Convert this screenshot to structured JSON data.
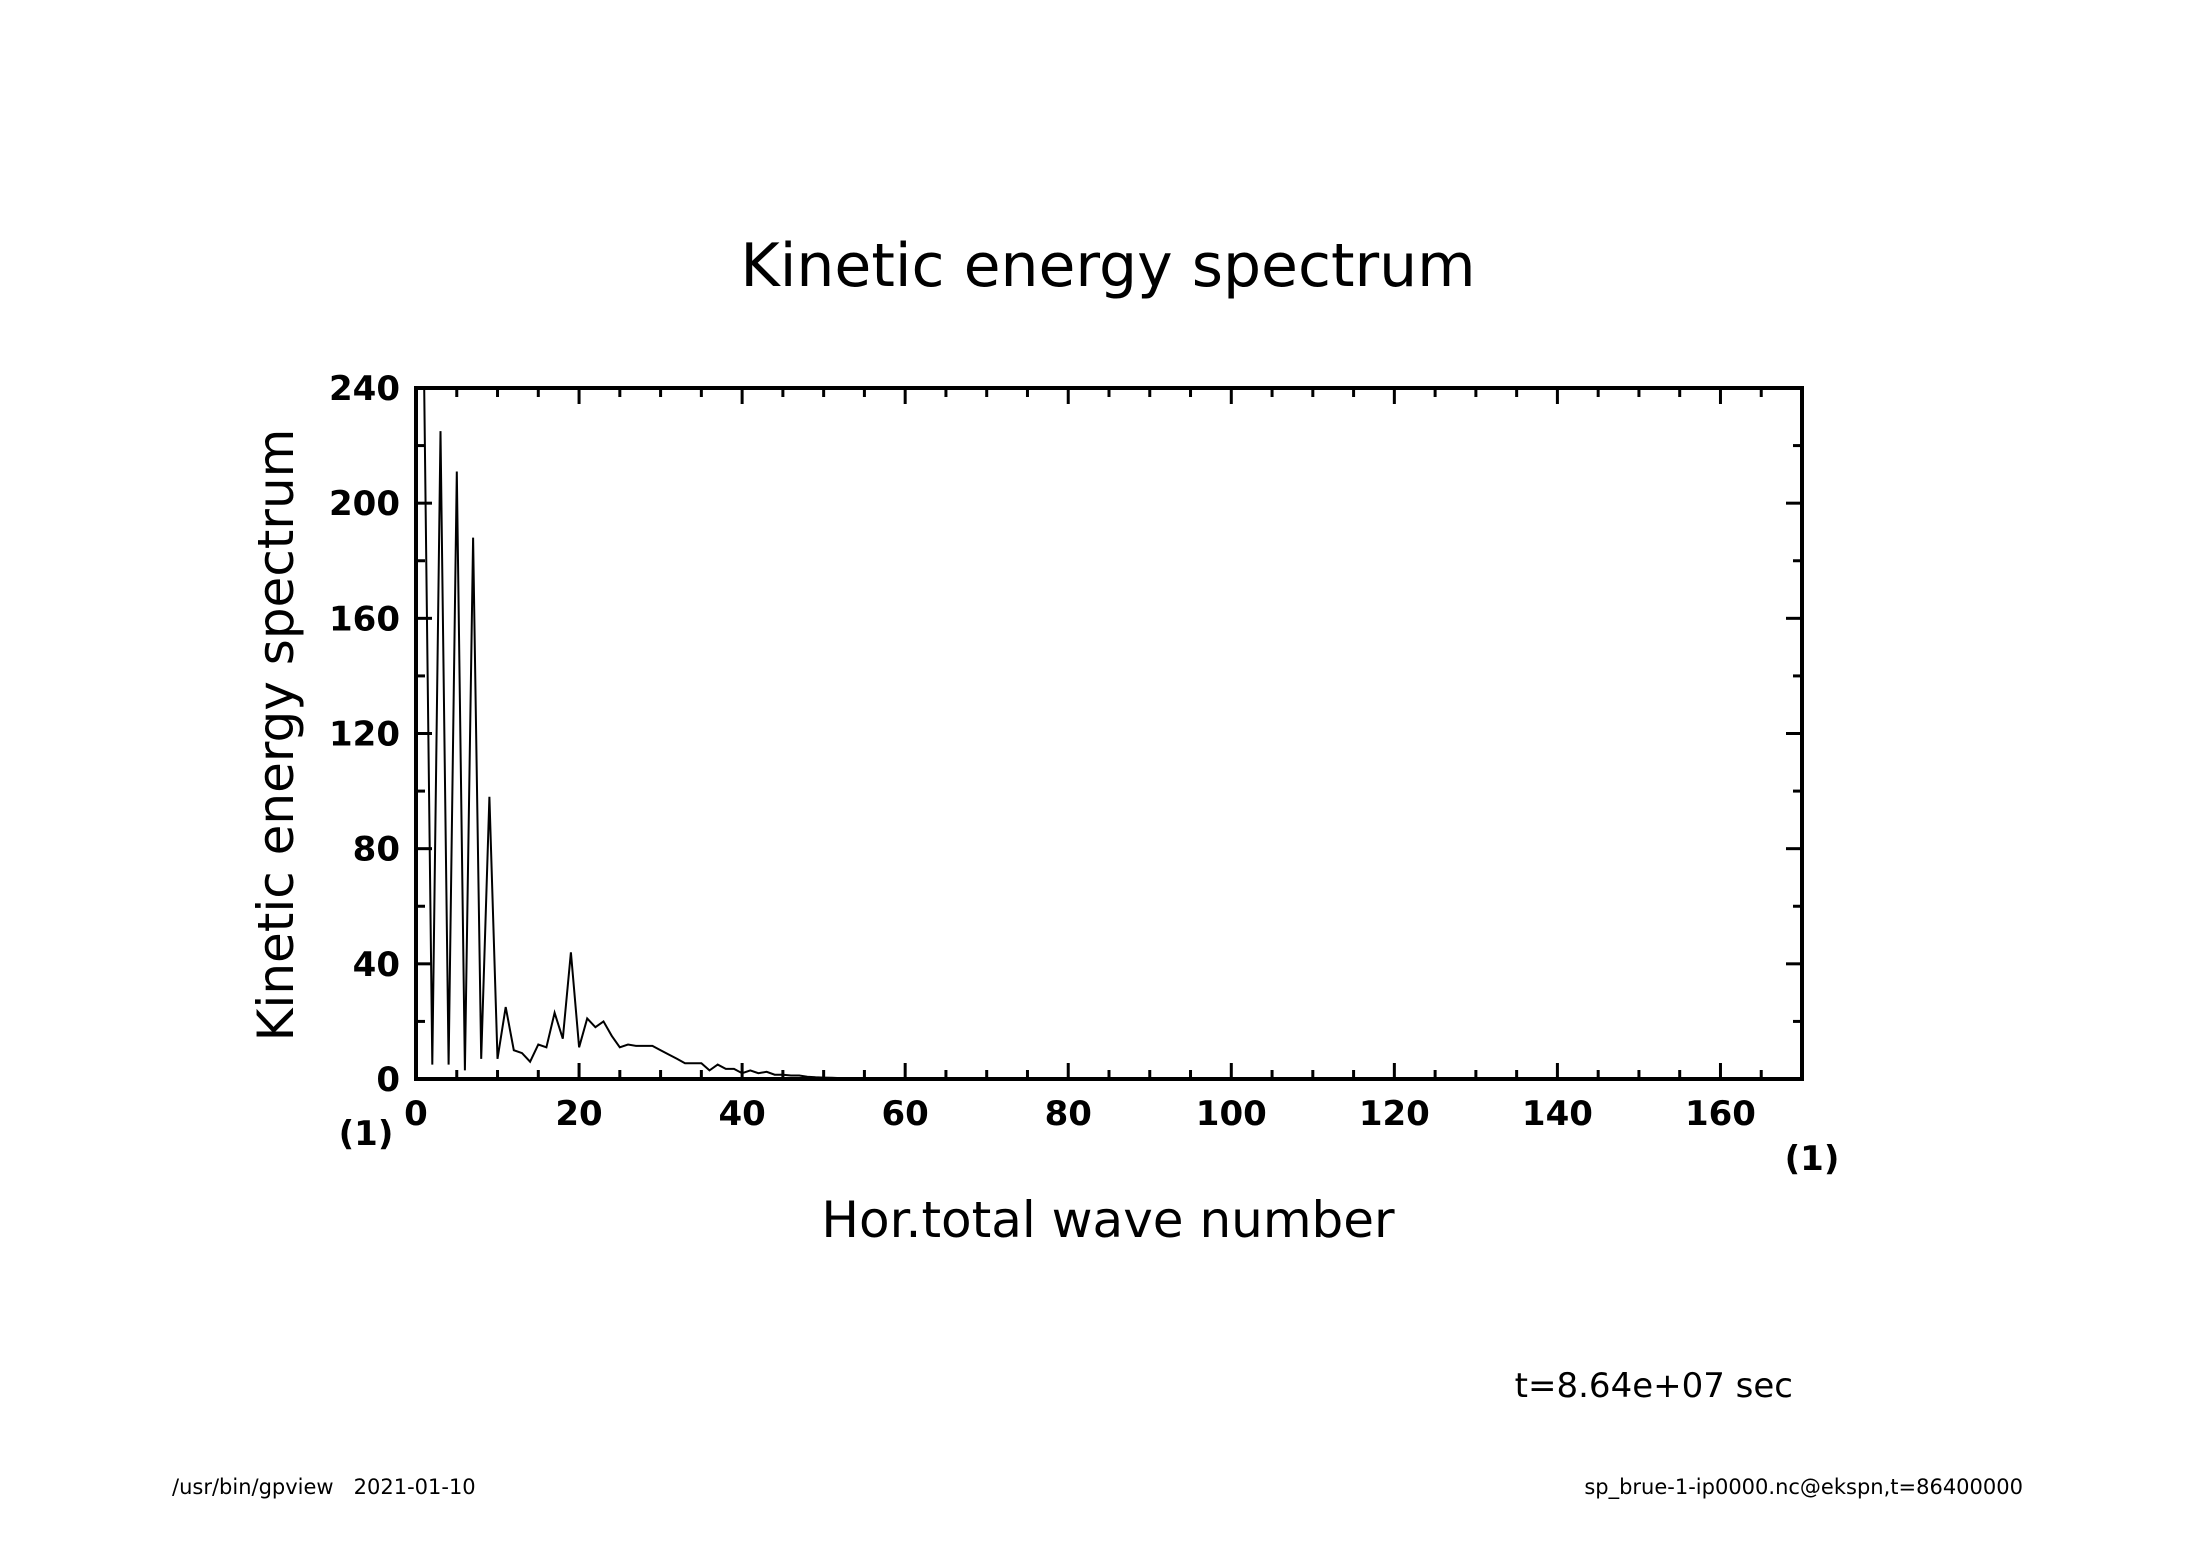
{
  "chart_data": {
    "type": "line",
    "title": "Kinetic energy spectrum",
    "xlabel": "Hor.total wave number",
    "ylabel": "Kinetic energy spectrum",
    "x_unit": "(1)",
    "y_unit": "(1)",
    "xlim": [
      0,
      170
    ],
    "ylim": [
      0,
      240
    ],
    "x_ticks": [
      0,
      20,
      40,
      60,
      80,
      100,
      120,
      140,
      160
    ],
    "y_ticks": [
      0,
      40,
      80,
      120,
      160,
      200,
      240
    ],
    "x_minor_step": 5,
    "y_minor_step": 20,
    "grid": false,
    "series": [
      {
        "x": [
          1,
          2,
          3,
          4,
          5,
          6,
          7,
          8,
          9,
          10,
          11,
          12,
          13,
          14,
          15,
          16,
          17,
          18,
          19,
          20,
          21,
          22,
          23,
          24,
          25,
          26,
          27,
          28,
          29,
          30,
          31,
          32,
          33,
          34,
          35,
          36,
          37,
          38,
          39,
          40,
          41,
          42,
          43,
          44,
          45,
          46,
          47,
          48,
          49,
          50,
          51,
          52,
          53,
          54,
          55,
          56,
          57,
          58,
          59,
          60,
          61,
          62,
          63,
          64,
          65,
          66,
          67,
          68,
          69,
          70,
          80,
          90,
          100,
          110,
          120,
          130,
          140,
          150,
          160,
          170
        ],
        "values": [
          245,
          5,
          225,
          5,
          211,
          3,
          188,
          7,
          98,
          7,
          25,
          10,
          9,
          6,
          12,
          11,
          23,
          14,
          44,
          11,
          21,
          18,
          20,
          15,
          11,
          12,
          11.5,
          11.5,
          11.5,
          10,
          8.5,
          7,
          5.5,
          5.5,
          5.5,
          3,
          5,
          3.5,
          3.5,
          2,
          3,
          2,
          2.5,
          1.5,
          1.5,
          1.2,
          1.2,
          0.8,
          0.6,
          0.5,
          0.4,
          0.3,
          0.3,
          0.2,
          0.2,
          0.1,
          0.1,
          0.1,
          0.1,
          0.1,
          0.05,
          0.05,
          0.05,
          0.05,
          0.05,
          0.05,
          0.02,
          0.02,
          0.02,
          0.02,
          0.01,
          0.01,
          0,
          0,
          0,
          0,
          0,
          0,
          0,
          0
        ]
      }
    ]
  },
  "footer": {
    "time_label": "t=8.64e+07 sec",
    "program_info": "/usr/bin/gpview   2021-01-10",
    "file_info": "sp_brue-1-ip0000.nc@ekspn,t=86400000"
  }
}
